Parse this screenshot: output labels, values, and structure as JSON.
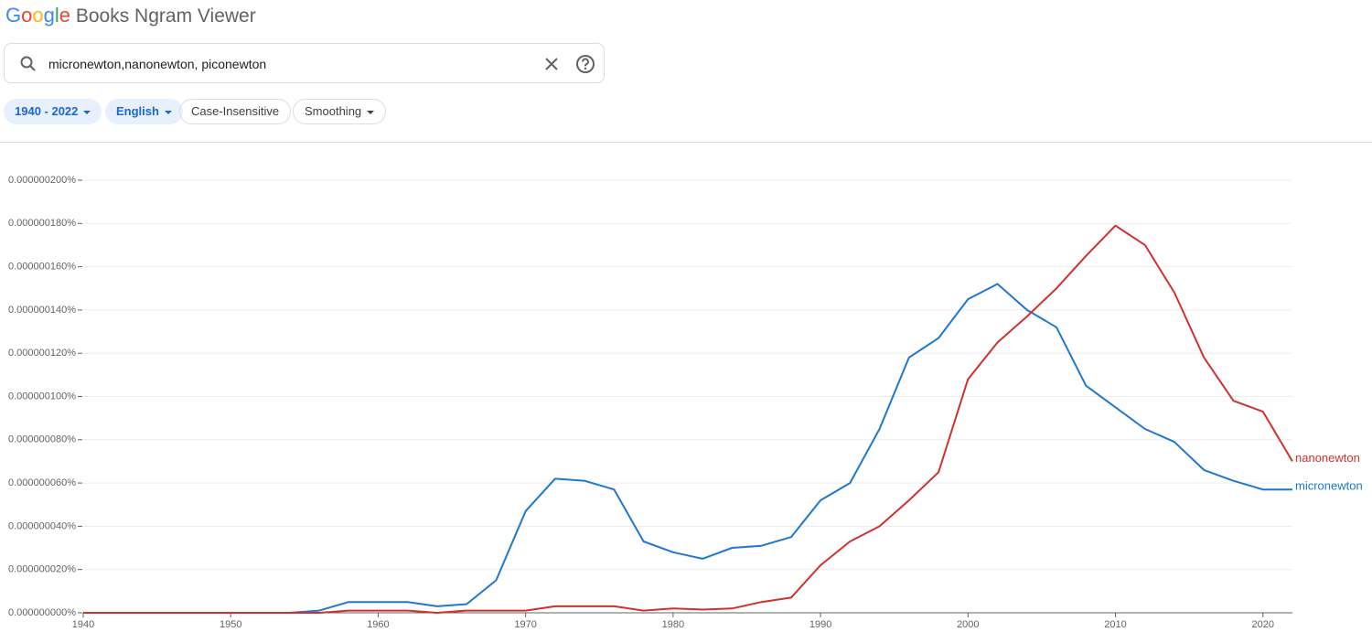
{
  "header": {
    "logo": "Google",
    "title": "Books Ngram Viewer"
  },
  "search": {
    "query": "micronewton,nanonewton, piconewton"
  },
  "chips": [
    "1940 - 2022",
    "English",
    "Case-Insensitive",
    "Smoothing"
  ],
  "chart_data": {
    "type": "line",
    "x": [
      1940,
      1942,
      1944,
      1946,
      1948,
      1950,
      1952,
      1954,
      1956,
      1958,
      1960,
      1962,
      1964,
      1966,
      1968,
      1970,
      1972,
      1974,
      1976,
      1978,
      1980,
      1982,
      1984,
      1986,
      1988,
      1990,
      1992,
      1994,
      1996,
      1998,
      2000,
      2002,
      2004,
      2006,
      2008,
      2010,
      2012,
      2014,
      2016,
      2018,
      2020,
      2022
    ],
    "series": [
      {
        "name": "micronewton",
        "color": "#1f77d0",
        "values": [
          0,
          0,
          0,
          0,
          0,
          0,
          0,
          0,
          1e-09,
          5e-09,
          5e-09,
          5e-09,
          3e-09,
          4e-09,
          1.5e-08,
          4.7e-08,
          6.2e-08,
          6.1e-08,
          5.7e-08,
          3.3e-08,
          2.8e-08,
          2.5e-08,
          3e-08,
          3.1e-08,
          3.5e-08,
          5.2e-08,
          6e-08,
          8.5e-08,
          1.18e-07,
          1.27e-07,
          1.45e-07,
          1.52e-07,
          1.4e-07,
          1.32e-07,
          1.05e-07,
          9.5e-08,
          8.5e-08,
          7.9e-08,
          6.6e-08,
          6.1e-08,
          5.7e-08,
          5.7e-08
        ]
      },
      {
        "name": "nanonewton",
        "color": "#d0312d",
        "values": [
          0,
          0,
          0,
          0,
          0,
          0,
          0,
          0,
          0,
          1e-09,
          1e-09,
          1e-09,
          0,
          1e-09,
          1e-09,
          1e-09,
          3e-09,
          3e-09,
          3e-09,
          1e-09,
          2e-09,
          1.5e-09,
          2e-09,
          5e-09,
          7e-09,
          2.2e-08,
          3.3e-08,
          4e-08,
          5.2e-08,
          6.5e-08,
          1.08e-07,
          1.25e-07,
          1.37e-07,
          1.5e-07,
          1.65e-07,
          1.79e-07,
          1.7e-07,
          1.48e-07,
          1.18e-07,
          9.8e-08,
          9.3e-08,
          7e-08
        ]
      }
    ],
    "xlim": [
      1940,
      2022
    ],
    "xticks": [
      1940,
      1950,
      1960,
      1970,
      1980,
      1990,
      2000,
      2010,
      2020
    ],
    "ylim": [
      0,
      2e-07
    ],
    "yticks": [
      {
        "value": 0,
        "label": "0.000000000%"
      },
      {
        "value": 2e-08,
        "label": "0.000000020%"
      },
      {
        "value": 4e-08,
        "label": "0.000000040%"
      },
      {
        "value": 6e-08,
        "label": "0.000000060%"
      },
      {
        "value": 8e-08,
        "label": "0.000000080%"
      },
      {
        "value": 1e-07,
        "label": "0.000000100%"
      },
      {
        "value": 1.2e-07,
        "label": "0.000000120%"
      },
      {
        "value": 1.4e-07,
        "label": "0.000000140%"
      },
      {
        "value": 1.6e-07,
        "label": "0.000000160%"
      },
      {
        "value": 1.8e-07,
        "label": "0.000000180%"
      },
      {
        "value": 2e-07,
        "label": "0.000000200%"
      }
    ],
    "grid": true
  }
}
